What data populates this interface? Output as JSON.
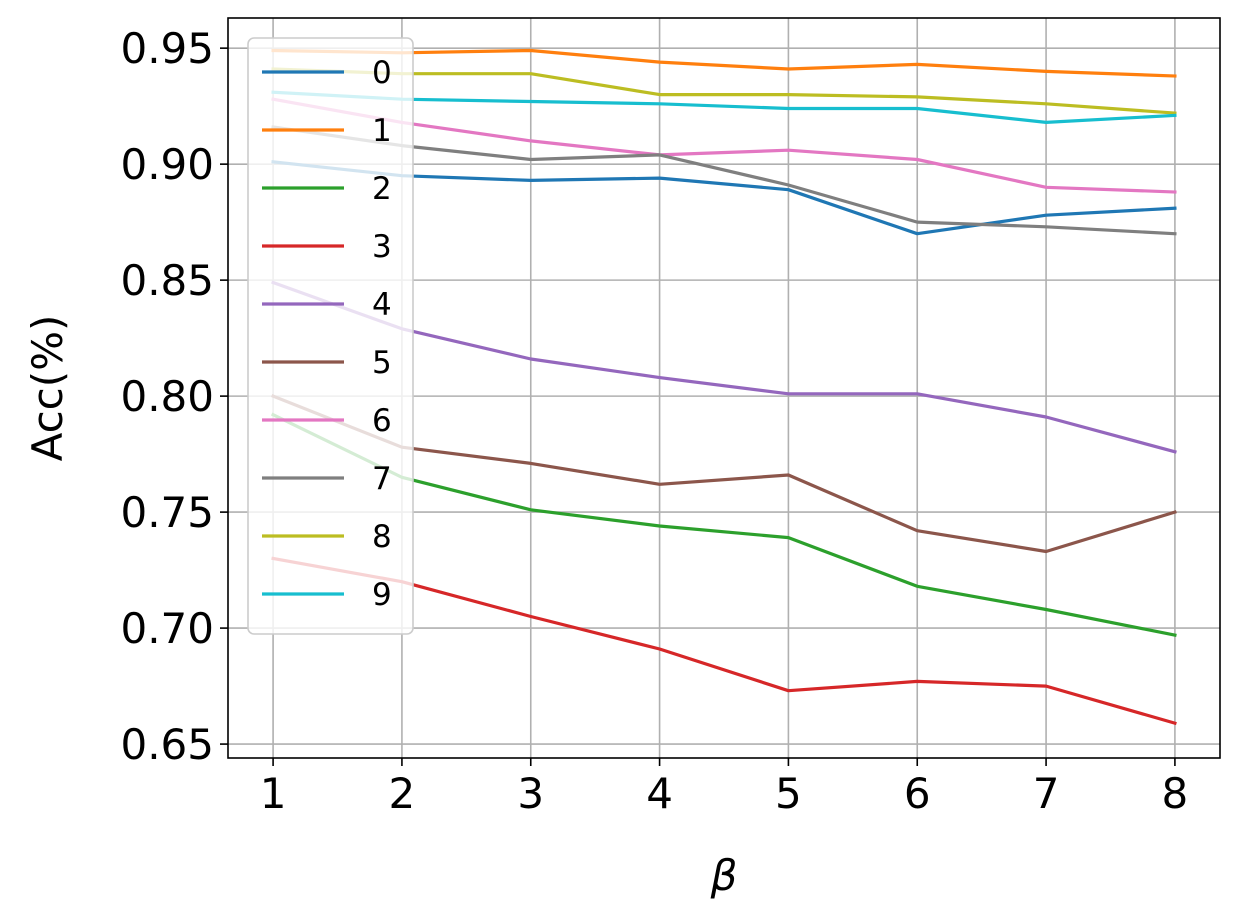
{
  "chart_data": {
    "type": "line",
    "xlabel": "β",
    "ylabel": "Acc(%)",
    "x": [
      1,
      2,
      3,
      4,
      5,
      6,
      7,
      8
    ],
    "x_ticks": [
      "1",
      "2",
      "3",
      "4",
      "5",
      "6",
      "7",
      "8"
    ],
    "y_ticks": [
      "0.65",
      "0.70",
      "0.75",
      "0.80",
      "0.85",
      "0.90",
      "0.95"
    ],
    "xlim": [
      0.65,
      8.35
    ],
    "ylim": [
      0.644,
      0.963
    ],
    "grid": true,
    "legend_position": "upper-left",
    "series": [
      {
        "name": "0",
        "color": "#1f77b4",
        "values": [
          0.901,
          0.895,
          0.893,
          0.894,
          0.889,
          0.87,
          0.878,
          0.881
        ]
      },
      {
        "name": "1",
        "color": "#ff7f0e",
        "values": [
          0.949,
          0.948,
          0.949,
          0.944,
          0.941,
          0.943,
          0.94,
          0.938
        ]
      },
      {
        "name": "2",
        "color": "#2ca02c",
        "values": [
          0.792,
          0.765,
          0.751,
          0.744,
          0.739,
          0.718,
          0.708,
          0.697
        ]
      },
      {
        "name": "3",
        "color": "#d62728",
        "values": [
          0.73,
          0.72,
          0.705,
          0.691,
          0.673,
          0.677,
          0.675,
          0.659
        ]
      },
      {
        "name": "4",
        "color": "#9467bd",
        "values": [
          0.849,
          0.829,
          0.816,
          0.808,
          0.801,
          0.801,
          0.791,
          0.776
        ]
      },
      {
        "name": "5",
        "color": "#8c564b",
        "values": [
          0.8,
          0.778,
          0.771,
          0.762,
          0.766,
          0.742,
          0.733,
          0.75
        ]
      },
      {
        "name": "6",
        "color": "#e377c2",
        "values": [
          0.928,
          0.918,
          0.91,
          0.904,
          0.906,
          0.902,
          0.89,
          0.888
        ]
      },
      {
        "name": "7",
        "color": "#7f7f7f",
        "values": [
          0.916,
          0.908,
          0.902,
          0.904,
          0.891,
          0.875,
          0.873,
          0.87
        ]
      },
      {
        "name": "8",
        "color": "#bcbd22",
        "values": [
          0.941,
          0.939,
          0.939,
          0.93,
          0.93,
          0.929,
          0.926,
          0.922
        ]
      },
      {
        "name": "9",
        "color": "#17becf",
        "values": [
          0.931,
          0.928,
          0.927,
          0.926,
          0.924,
          0.924,
          0.918,
          0.921
        ]
      }
    ]
  }
}
